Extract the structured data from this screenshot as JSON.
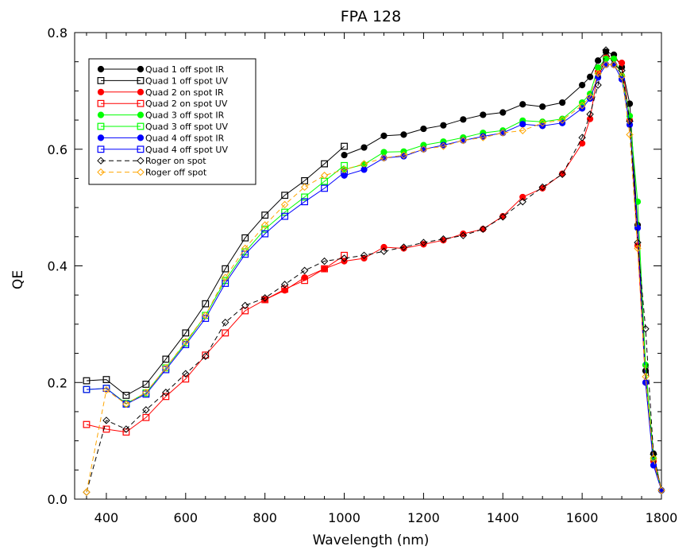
{
  "chart_data": {
    "type": "line",
    "title": "FPA 128",
    "xlabel": "Wavelength (nm)",
    "ylabel": "QE",
    "xlim": [
      320,
      1800
    ],
    "ylim": [
      0,
      0.8
    ],
    "xticks": [
      400,
      600,
      800,
      1000,
      1200,
      1400,
      1600,
      1800
    ],
    "yticks": [
      0.0,
      0.2,
      0.4,
      0.6,
      0.8
    ],
    "ytick_labels": [
      "0.0",
      "0.2",
      "0.4",
      "0.6",
      "0.8"
    ],
    "legend_position": "top-left",
    "series": [
      {
        "name": "Quad 1 off spot IR",
        "color": "#000000",
        "marker": "filled-circle",
        "linestyle": "solid",
        "x": [
          1000,
          1050,
          1100,
          1150,
          1200,
          1250,
          1300,
          1350,
          1400,
          1450,
          1500,
          1550,
          1600,
          1620,
          1640,
          1660,
          1680,
          1700,
          1720,
          1740,
          1760,
          1780,
          1800
        ],
        "y": [
          0.59,
          0.603,
          0.623,
          0.625,
          0.635,
          0.641,
          0.651,
          0.659,
          0.663,
          0.677,
          0.673,
          0.68,
          0.71,
          0.724,
          0.752,
          0.767,
          0.762,
          0.741,
          0.678,
          0.47,
          0.22,
          0.078,
          0.015
        ]
      },
      {
        "name": "Quad 1 off spot UV",
        "color": "#000000",
        "marker": "open-square",
        "linestyle": "solid",
        "x": [
          350,
          400,
          450,
          500,
          550,
          600,
          650,
          700,
          750,
          800,
          850,
          900,
          950,
          1000
        ],
        "y": [
          0.203,
          0.205,
          0.178,
          0.197,
          0.24,
          0.285,
          0.335,
          0.395,
          0.448,
          0.487,
          0.521,
          0.546,
          0.575,
          0.605
        ]
      },
      {
        "name": "Quad 2 on spot IR",
        "color": "#ff0000",
        "marker": "filled-circle",
        "linestyle": "solid",
        "x": [
          800,
          850,
          900,
          950,
          1000,
          1050,
          1100,
          1150,
          1200,
          1250,
          1300,
          1350,
          1400,
          1450,
          1500,
          1550,
          1600,
          1620,
          1640,
          1660,
          1680,
          1700,
          1720,
          1740,
          1760,
          1780,
          1800
        ],
        "y": [
          0.342,
          0.358,
          0.38,
          0.395,
          0.408,
          0.413,
          0.432,
          0.43,
          0.437,
          0.444,
          0.455,
          0.463,
          0.485,
          0.518,
          0.533,
          0.558,
          0.61,
          0.652,
          0.733,
          0.757,
          0.755,
          0.748,
          0.65,
          0.435,
          0.2,
          0.065,
          0.015
        ]
      },
      {
        "name": "Quad 2 on spot UV",
        "color": "#ff0000",
        "marker": "open-square",
        "linestyle": "solid",
        "x": [
          350,
          400,
          450,
          500,
          550,
          600,
          650,
          700,
          750,
          800,
          850,
          900,
          950,
          1000
        ],
        "y": [
          0.128,
          0.12,
          0.115,
          0.14,
          0.176,
          0.206,
          0.247,
          0.285,
          0.323,
          0.342,
          0.36,
          0.375,
          0.395,
          0.418
        ]
      },
      {
        "name": "Quad 3 off spot IR",
        "color": "#00ff00",
        "marker": "filled-circle",
        "linestyle": "solid",
        "x": [
          1000,
          1050,
          1100,
          1150,
          1200,
          1250,
          1300,
          1350,
          1400,
          1450,
          1500,
          1550,
          1600,
          1620,
          1640,
          1660,
          1680,
          1700,
          1720,
          1740,
          1760,
          1780,
          1800
        ],
        "y": [
          0.565,
          0.574,
          0.595,
          0.596,
          0.607,
          0.613,
          0.62,
          0.628,
          0.632,
          0.649,
          0.647,
          0.652,
          0.68,
          0.695,
          0.74,
          0.755,
          0.755,
          0.726,
          0.657,
          0.51,
          0.23,
          0.07,
          0.015
        ]
      },
      {
        "name": "Quad 3 off spot UV",
        "color": "#00ff00",
        "marker": "open-square",
        "linestyle": "solid",
        "x": [
          350,
          400,
          450,
          500,
          550,
          600,
          650,
          700,
          750,
          800,
          850,
          900,
          950,
          1000
        ],
        "y": [
          0.188,
          0.19,
          0.164,
          0.182,
          0.225,
          0.268,
          0.315,
          0.375,
          0.424,
          0.463,
          0.492,
          0.518,
          0.545,
          0.572
        ]
      },
      {
        "name": "Quad 4 off spot IR",
        "color": "#0000ff",
        "marker": "filled-circle",
        "linestyle": "solid",
        "x": [
          1000,
          1050,
          1100,
          1150,
          1200,
          1250,
          1300,
          1350,
          1400,
          1450,
          1500,
          1550,
          1600,
          1620,
          1640,
          1660,
          1680,
          1700,
          1720,
          1740,
          1760,
          1780,
          1800
        ],
        "y": [
          0.555,
          0.565,
          0.585,
          0.588,
          0.6,
          0.607,
          0.615,
          0.622,
          0.628,
          0.643,
          0.64,
          0.645,
          0.67,
          0.687,
          0.723,
          0.745,
          0.745,
          0.72,
          0.642,
          0.465,
          0.2,
          0.058,
          0.015
        ]
      },
      {
        "name": "Quad 4 off spot UV",
        "color": "#0000ff",
        "marker": "open-square",
        "linestyle": "solid",
        "x": [
          350,
          400,
          450,
          500,
          550,
          600,
          650,
          700,
          750,
          800,
          850,
          900,
          950,
          1000
        ],
        "y": [
          0.188,
          0.19,
          0.163,
          0.18,
          0.222,
          0.265,
          0.31,
          0.37,
          0.42,
          0.455,
          0.485,
          0.51,
          0.533,
          0.56
        ]
      },
      {
        "name": "Roger on spot",
        "color": "#000000",
        "marker": "open-diamond",
        "linestyle": "dashed",
        "x": [
          350,
          400,
          450,
          500,
          550,
          600,
          650,
          700,
          750,
          800,
          850,
          900,
          950,
          1000,
          1050,
          1100,
          1150,
          1200,
          1250,
          1300,
          1350,
          1400,
          1450,
          1500,
          1550,
          1600,
          1620,
          1640,
          1660,
          1680,
          1700,
          1720,
          1740,
          1760,
          1780,
          1800
        ],
        "y": [
          0.012,
          0.135,
          0.12,
          0.153,
          0.183,
          0.215,
          0.245,
          0.303,
          0.332,
          0.345,
          0.368,
          0.392,
          0.408,
          0.413,
          0.418,
          0.425,
          0.432,
          0.44,
          0.446,
          0.452,
          0.463,
          0.484,
          0.51,
          0.535,
          0.557,
          0.62,
          0.66,
          0.71,
          0.77,
          0.745,
          0.735,
          0.648,
          0.44,
          0.292,
          0.077,
          0.015
        ]
      },
      {
        "name": "Roger off spot",
        "color": "#ffa500",
        "marker": "open-diamond",
        "linestyle": "dashed",
        "x": [
          350,
          400,
          450,
          500,
          550,
          600,
          650,
          700,
          750,
          800,
          850,
          900,
          950,
          1000,
          1050,
          1100,
          1150,
          1200,
          1250,
          1300,
          1350,
          1400,
          1450,
          1500,
          1550,
          1600,
          1620,
          1640,
          1660,
          1680,
          1700,
          1720,
          1740,
          1760,
          1780,
          1800
        ],
        "y": [
          0.012,
          0.187,
          0.163,
          0.183,
          0.225,
          0.27,
          0.315,
          0.38,
          0.43,
          0.47,
          0.505,
          0.535,
          0.555,
          0.565,
          0.575,
          0.585,
          0.59,
          0.6,
          0.605,
          0.615,
          0.62,
          0.628,
          0.632,
          0.645,
          0.65,
          0.675,
          0.69,
          0.73,
          0.745,
          0.745,
          0.725,
          0.625,
          0.43,
          0.21,
          0.07,
          0.015
        ]
      }
    ]
  }
}
